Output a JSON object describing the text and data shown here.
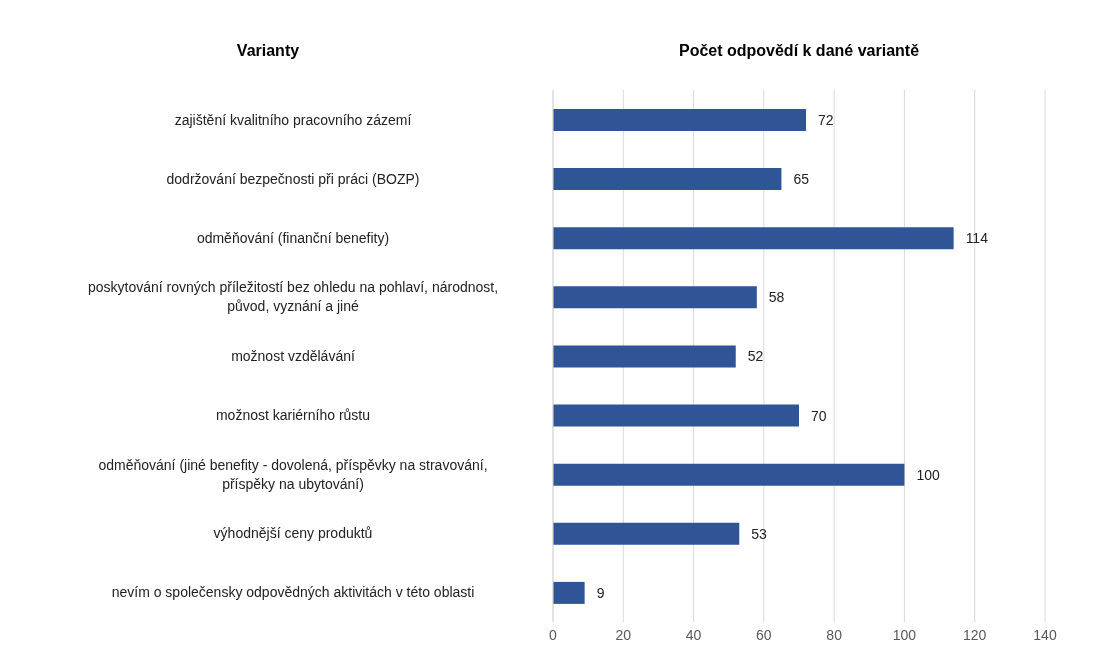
{
  "chart_data": {
    "type": "bar",
    "orientation": "horizontal",
    "title": "Počet odpovědí k dané variantě",
    "ylabel": "Varianty",
    "categories": [
      "zajištění kvalitního pracovního zázemí",
      "dodržování bezpečnosti při práci (BOZP)",
      "odměňování (finanční benefity)",
      "poskytování rovných příležitostí bez ohledu na pohlaví, národnost, původ, vyznání a jiné",
      "možnost vzdělávání",
      "možnost kariérního růstu",
      "odměňování (jiné benefity - dovolená, příspěvky na stravování, příspěky na ubytování)",
      "výhodnější ceny produktů",
      "nevím o společensky odpovědných aktivitách v této oblasti"
    ],
    "values": [
      72,
      65,
      114,
      58,
      52,
      70,
      100,
      53,
      9
    ],
    "color": "#2f5597",
    "xlim": [
      0,
      140
    ],
    "xticks": [
      0,
      20,
      40,
      60,
      80,
      100,
      120,
      140
    ],
    "grid": "x",
    "data_labels": true
  }
}
